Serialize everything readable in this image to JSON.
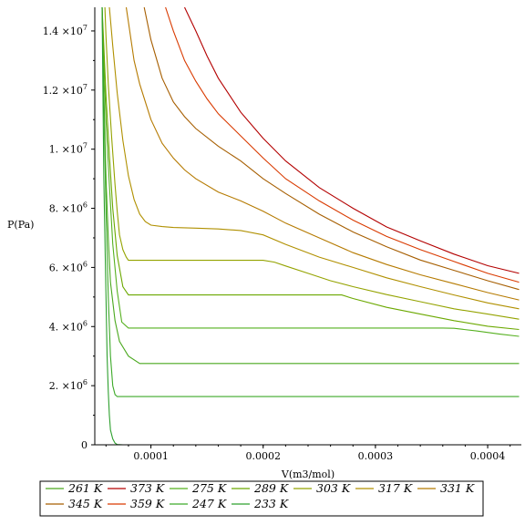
{
  "chart_data": {
    "type": "line",
    "xlabel": "V(m3/mol)",
    "ylabel": "P(Pa)",
    "xlim": [
      5e-05,
      0.00043
    ],
    "ylim": [
      0,
      14800000
    ],
    "x_ticks": [
      {
        "value": 0.0001,
        "label": "0.0001"
      },
      {
        "value": 0.0002,
        "label": "0.0002"
      },
      {
        "value": 0.0003,
        "label": "0.0003"
      },
      {
        "value": 0.0004,
        "label": "0.0004"
      }
    ],
    "y_ticks": [
      {
        "value": 2000000,
        "mant": "2.",
        "exp": "6"
      },
      {
        "value": 4000000,
        "mant": "4.",
        "exp": "6"
      },
      {
        "value": 6000000,
        "mant": "6.",
        "exp": "6"
      },
      {
        "value": 8000000,
        "mant": "8.",
        "exp": "6"
      },
      {
        "value": 10000000,
        "mant": "1.",
        "exp": "7"
      },
      {
        "value": 12000000,
        "mant": "1.2",
        "exp": "7"
      },
      {
        "value": 14000000,
        "mant": "1.4",
        "exp": "7"
      }
    ],
    "y_tick_times": "×10",
    "y_zero_label": "0",
    "legend_placement": "bottom",
    "series": [
      {
        "name": "261 K",
        "color": "#4aa81e",
        "x": [
          5.65e-05,
          5.8e-05,
          6e-05,
          6.2e-05,
          6.4e-05,
          6.8e-05,
          7.2e-05,
          8e-05,
          9e-05,
          0.00012,
          0.00018,
          0.00025,
          0.00031,
          0.00036,
          0.00038,
          0.00041,
          0.000428
        ],
        "y": [
          14800000,
          12000000,
          9000000,
          7000000,
          5500000,
          4200000,
          3500000,
          3000000,
          2750000,
          2750000,
          2750000,
          2750000,
          2750000,
          2750000,
          2750000,
          2750000,
          2750000
        ]
      },
      {
        "name": "373 K",
        "color": "#b30000",
        "x": [
          0.00013,
          0.00014,
          0.00015,
          0.00016,
          0.00018,
          0.0002,
          0.00022,
          0.00025,
          0.00028,
          0.00031,
          0.00034,
          0.00037,
          0.0004,
          0.000428
        ],
        "y": [
          14800000,
          14000000,
          13150000,
          12400000,
          11250000,
          10370000,
          9600000,
          8700000,
          8000000,
          7370000,
          6900000,
          6450000,
          6060000,
          5800000
        ]
      },
      {
        "name": "275 K",
        "color": "#55b01f",
        "x": [
          5.65e-05,
          5.8e-05,
          6e-05,
          6.3e-05,
          6.6e-05,
          7e-05,
          7.4e-05,
          8e-05,
          9e-05,
          0.0001,
          0.00012,
          0.00015,
          0.00018,
          0.0002,
          0.00025,
          0.0003,
          0.00034,
          0.00036,
          0.00037,
          0.00039,
          0.00041,
          0.000428
        ],
        "y": [
          14800000,
          13000000,
          11000000,
          8800000,
          6800000,
          5200000,
          4150000,
          3950000,
          3950000,
          3950000,
          3950000,
          3950000,
          3950000,
          3950000,
          3950000,
          3950000,
          3950000,
          3950000,
          3940000,
          3850000,
          3750000,
          3670000
        ]
      },
      {
        "name": "289 K",
        "color": "#6ba800",
        "x": [
          5.65e-05,
          5.8e-05,
          6e-05,
          6.3e-05,
          6.6e-05,
          7e-05,
          7.5e-05,
          8e-05,
          9e-05,
          0.0001,
          0.00012,
          0.00015,
          0.00018,
          0.0002,
          0.00025,
          0.00027,
          0.00028,
          0.00031,
          0.00034,
          0.00037,
          0.0004,
          0.000428
        ],
        "y": [
          14800000,
          13500000,
          11800000,
          9800000,
          8000000,
          6400000,
          5350000,
          5070000,
          5070000,
          5070000,
          5070000,
          5070000,
          5070000,
          5070000,
          5070000,
          5070000,
          4950000,
          4650000,
          4420000,
          4200000,
          4010000,
          3900000
        ]
      },
      {
        "name": "303 K",
        "color": "#94a300",
        "x": [
          5.9e-05,
          6e-05,
          6.2e-05,
          6.5e-05,
          6.8e-05,
          7e-05,
          7.2e-05,
          7.5e-05,
          7.8e-05,
          8e-05,
          9e-05,
          0.0001,
          0.00012,
          0.00015,
          0.00018,
          0.0002,
          0.00021,
          0.00022,
          0.00024,
          0.00026,
          0.00028,
          0.00031,
          0.00034,
          0.00037,
          0.0004,
          0.000428
        ],
        "y": [
          14800000,
          13800000,
          12200000,
          10400000,
          8800000,
          7900000,
          7100000,
          6600000,
          6350000,
          6240000,
          6240000,
          6240000,
          6240000,
          6240000,
          6240000,
          6240000,
          6180000,
          6050000,
          5800000,
          5550000,
          5350000,
          5080000,
          4840000,
          4600000,
          4420000,
          4250000
        ]
      },
      {
        "name": "317 K",
        "color": "#b09000",
        "x": [
          6.3e-05,
          6.6e-05,
          7e-05,
          7.5e-05,
          8e-05,
          8.5e-05,
          9e-05,
          9.5e-05,
          0.0001,
          0.00011,
          0.00012,
          0.00014,
          0.00016,
          0.00018,
          0.0002,
          0.00022,
          0.00025,
          0.00028,
          0.00031,
          0.00034,
          0.00037,
          0.0004,
          0.000428
        ],
        "y": [
          14800000,
          13500000,
          11900000,
          10300000,
          9100000,
          8300000,
          7800000,
          7550000,
          7430000,
          7380000,
          7350000,
          7330000,
          7300000,
          7250000,
          7100000,
          6780000,
          6350000,
          6000000,
          5650000,
          5350000,
          5070000,
          4800000,
          4600000
        ]
      },
      {
        "name": "331 K",
        "color": "#b57a00",
        "x": [
          7.8e-05,
          8e-05,
          8.5e-05,
          9e-05,
          0.0001,
          0.00011,
          0.00012,
          0.00013,
          0.00014,
          0.00016,
          0.00018,
          0.0002,
          0.00022,
          0.00025,
          0.00028,
          0.00031,
          0.00034,
          0.00037,
          0.0004,
          0.000428
        ],
        "y": [
          14800000,
          14300000,
          13000000,
          12200000,
          11000000,
          10200000,
          9700000,
          9300000,
          9000000,
          8550000,
          8250000,
          7900000,
          7500000,
          7000000,
          6500000,
          6100000,
          5750000,
          5450000,
          5150000,
          4900000
        ]
      },
      {
        "name": "345 K",
        "color": "#a65e00",
        "x": [
          9.4e-05,
          0.0001,
          0.00011,
          0.00012,
          0.00013,
          0.00014,
          0.00016,
          0.00018,
          0.0002,
          0.00022,
          0.00025,
          0.00028,
          0.00031,
          0.00034,
          0.00037,
          0.0004,
          0.000428
        ],
        "y": [
          14800000,
          13700000,
          12400000,
          11600000,
          11100000,
          10700000,
          10100000,
          9600000,
          9000000,
          8500000,
          7800000,
          7200000,
          6700000,
          6250000,
          5900000,
          5550000,
          5250000
        ]
      },
      {
        "name": "359 K",
        "color": "#d93a00",
        "x": [
          0.000113,
          0.00012,
          0.00013,
          0.00014,
          0.00015,
          0.00016,
          0.00018,
          0.0002,
          0.00022,
          0.00025,
          0.00028,
          0.00031,
          0.00034,
          0.00037,
          0.0004,
          0.000428
        ],
        "y": [
          14800000,
          14000000,
          13000000,
          12300000,
          11700000,
          11200000,
          10450000,
          9700000,
          9000000,
          8250000,
          7600000,
          7050000,
          6600000,
          6200000,
          5800000,
          5500000
        ]
      },
      {
        "name": "247 K",
        "color": "#3eaa2a",
        "x": [
          5.65e-05,
          5.8e-05,
          6e-05,
          6.2e-05,
          6.4e-05,
          6.6e-05,
          6.8e-05,
          7e-05,
          7.5e-05,
          8e-05,
          0.0001,
          0.0002,
          0.0003,
          0.0004,
          0.000428
        ],
        "y": [
          14800000,
          11500000,
          8000000,
          5000000,
          3000000,
          2000000,
          1700000,
          1630000,
          1630000,
          1630000,
          1630000,
          1630000,
          1630000,
          1630000,
          1630000
        ]
      },
      {
        "name": "233 K",
        "color": "#2ea02e",
        "x": [
          5.65e-05,
          5.8e-05,
          6e-05,
          6.1e-05,
          6.2e-05,
          6.3e-05,
          6.4e-05,
          6.6e-05,
          6.8e-05,
          7e-05,
          7.5e-05,
          8e-05,
          0.0001,
          0.0002,
          0.0003,
          0.0004,
          0.000428
        ],
        "y": [
          14800000,
          9000000,
          5000000,
          3000000,
          1800000,
          1000000,
          500000,
          200000,
          60000,
          10000,
          0,
          0,
          0,
          0,
          0,
          0,
          0
        ]
      }
    ]
  }
}
